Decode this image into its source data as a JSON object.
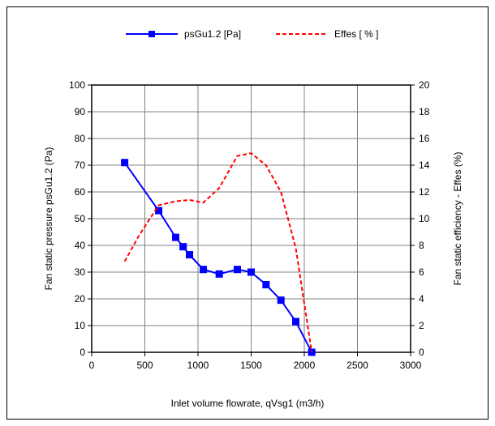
{
  "chart_data": {
    "type": "line",
    "xlabel": "Inlet volume flowrate, qVsg1 (m3/h)",
    "ylabel": "Fan static pressure psGu1.2 (Pa)",
    "y2label": "Fan static efficiency - Effes (%)",
    "xlim": [
      0,
      3000
    ],
    "ylim": [
      0,
      100
    ],
    "y2lim": [
      0,
      20
    ],
    "xticks": [
      "0",
      "500",
      "1000",
      "1500",
      "2000",
      "2500",
      "3000"
    ],
    "yticks": [
      "0",
      "10",
      "20",
      "30",
      "40",
      "50",
      "60",
      "70",
      "80",
      "90",
      "100"
    ],
    "y2ticks": [
      "0",
      "2",
      "4",
      "6",
      "8",
      "10",
      "12",
      "14",
      "16",
      "18",
      "20"
    ],
    "grid": true,
    "legend_position": "top",
    "series": [
      {
        "name": "psGu1.2 [Pa]",
        "axis": "left",
        "color": "#0000ff",
        "style": "solid",
        "marker": "square",
        "x": [
          310,
          630,
          790,
          860,
          920,
          1050,
          1200,
          1370,
          1500,
          1640,
          1780,
          1920,
          2070
        ],
        "y": [
          71,
          53,
          43,
          39.5,
          36.5,
          31,
          29.3,
          31,
          30,
          25.3,
          19.5,
          11.5,
          0
        ]
      },
      {
        "name": "Effes [ % ]",
        "axis": "right",
        "color": "#ff0000",
        "style": "dashed",
        "marker": "none",
        "x": [
          310,
          450,
          630,
          790,
          920,
          1050,
          1200,
          1370,
          1500,
          1640,
          1780,
          1920,
          2070
        ],
        "y": [
          6.8,
          8.8,
          11,
          11.3,
          11.4,
          11.2,
          12.3,
          14.7,
          14.9,
          14,
          12,
          7.8,
          0
        ]
      }
    ]
  }
}
